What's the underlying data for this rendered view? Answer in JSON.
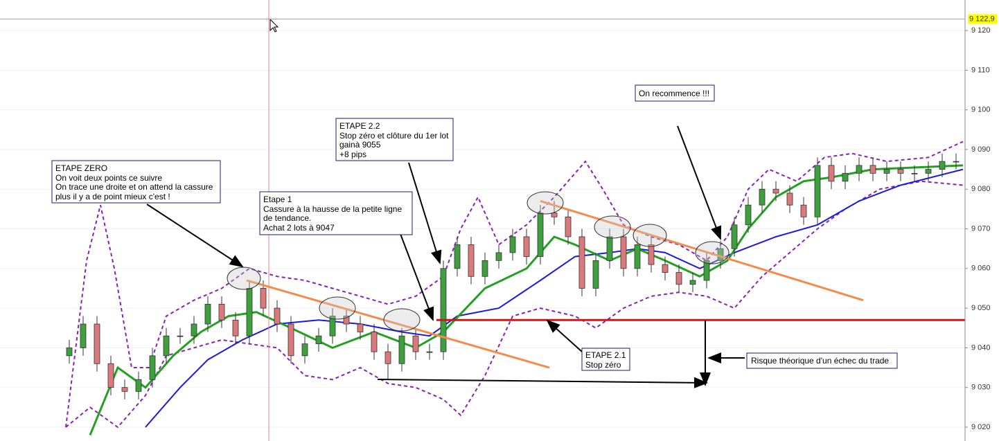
{
  "chart_data": {
    "type": "candlestick",
    "xlim": [
      -5,
      64.65
    ],
    "ylim": [
      9016.5,
      9127.7
    ],
    "yticks": [
      {
        "value": 9020,
        "label": "9 020"
      },
      {
        "value": 9030,
        "label": "9 030"
      },
      {
        "value": 9040,
        "label": "9 040"
      },
      {
        "value": 9050,
        "label": "9 050"
      },
      {
        "value": 9060,
        "label": "9 060"
      },
      {
        "value": 9070,
        "label": "9 070"
      },
      {
        "value": 9080,
        "label": "9 080"
      },
      {
        "value": 9090,
        "label": "9 090"
      },
      {
        "value": 9100,
        "label": "9 100"
      },
      {
        "value": 9110,
        "label": "9 110"
      },
      {
        "value": 9120,
        "label": "9 120"
      }
    ],
    "current_price": {
      "value": 9122.9,
      "label": "9 122,9"
    },
    "up_color": "#3f9f3f",
    "down_color": "#d9797b",
    "open": [
      9038,
      9040,
      9046,
      9036,
      9030,
      9029,
      9032,
      9038,
      9043,
      9043,
      9046,
      9051,
      9047,
      9043,
      9055,
      9050,
      9046,
      9038,
      9041,
      9043,
      9048,
      9046,
      9044,
      9039,
      9036,
      9043,
      9039,
      9039,
      9060,
      9066,
      9058,
      9062,
      9064,
      9068,
      9063,
      9074,
      9073,
      9068,
      9055,
      9062,
      9068,
      9060,
      9066,
      9061,
      9059,
      9056,
      9057,
      9062,
      9065,
      9071,
      9076,
      9080,
      9079,
      9076,
      9073,
      9086,
      9082,
      9084,
      9086,
      9084,
      9085,
      9084,
      9084,
      9085,
      9087
    ],
    "high": [
      9042,
      9048,
      9048,
      9038,
      9032,
      9034,
      9040,
      9045,
      9045,
      9048,
      9053,
      9053,
      9049,
      9057,
      9057,
      9052,
      9048,
      9043,
      9045,
      9050,
      9050,
      9048,
      9046,
      9041,
      9045,
      9045,
      9041,
      9062,
      9068,
      9068,
      9064,
      9066,
      9070,
      9070,
      9076,
      9077,
      9075,
      9070,
      9064,
      9070,
      9070,
      9068,
      9068,
      9063,
      9061,
      9059,
      9064,
      9067,
      9073,
      9078,
      9082,
      9082,
      9081,
      9078,
      9088,
      9088,
      9086,
      9088,
      9088,
      9087,
      9087,
      9086,
      9087,
      9089,
      9089
    ],
    "low": [
      9036,
      9038,
      9034,
      9028,
      9027,
      9027,
      9030,
      9036,
      9041,
      9041,
      9044,
      9045,
      9041,
      9041,
      9048,
      9044,
      9036,
      9036,
      9039,
      9041,
      9044,
      9042,
      9037,
      9032,
      9034,
      9037,
      9037,
      9037,
      9058,
      9056,
      9056,
      9060,
      9062,
      9061,
      9061,
      9071,
      9066,
      9053,
      9053,
      9060,
      9058,
      9058,
      9059,
      9057,
      9054,
      9054,
      9055,
      9060,
      9063,
      9069,
      9074,
      9077,
      9074,
      9071,
      9071,
      9080,
      9080,
      9082,
      9082,
      9082,
      9082,
      9082,
      9082,
      9083,
      9085
    ],
    "close": [
      9040,
      9046,
      9036,
      9030,
      9029,
      9032,
      9038,
      9043,
      9043,
      9046,
      9051,
      9047,
      9043,
      9055,
      9050,
      9046,
      9038,
      9041,
      9043,
      9048,
      9046,
      9044,
      9039,
      9036,
      9043,
      9039,
      9039,
      9060,
      9066,
      9058,
      9062,
      9064,
      9068,
      9063,
      9074,
      9073,
      9068,
      9055,
      9062,
      9068,
      9060,
      9066,
      9061,
      9059,
      9056,
      9057,
      9062,
      9065,
      9071,
      9076,
      9080,
      9079,
      9076,
      9073,
      9086,
      9082,
      9084,
      9086,
      9084,
      9085,
      9084,
      9084,
      9085,
      9087,
      9087
    ],
    "lines": [
      {
        "color": "#8a1fb8",
        "dashed": true,
        "width": 2,
        "x": [
          -0.25,
          1.25,
          2.25,
          3.25,
          4.5,
          5.75,
          7,
          9,
          11,
          13,
          15,
          17,
          19,
          21,
          23,
          25,
          27,
          28.25,
          29.5,
          31,
          33,
          35,
          37.25,
          38.5,
          40,
          42,
          44,
          46,
          47.5,
          49,
          50.5,
          52.5,
          54.5,
          56.5,
          59,
          62,
          64.5
        ],
        "values": [
          9020,
          9062,
          9076,
          9060,
          9035,
          9035,
          9048,
          9052,
          9055,
          9060,
          9058,
          9057,
          9055,
          9053,
          9051,
          9053,
          9058,
          9070,
          9078,
          9066,
          9071,
          9078,
          9087,
          9080,
          9071,
          9068,
          9066,
          9062,
          9068,
          9080,
          9085,
          9082,
          9088,
          9089,
          9087,
          9088,
          9092
        ]
      },
      {
        "color": "#8a1fb8",
        "dashed": true,
        "width": 2,
        "x": [
          -0.25,
          1.5,
          3.5,
          5.5,
          7,
          9,
          11,
          13,
          15,
          17,
          19,
          21,
          23,
          25,
          27,
          28.25,
          30,
          32,
          34,
          36.5,
          38,
          40,
          42,
          44,
          46,
          48,
          50,
          52,
          54,
          56,
          58.5,
          61.5,
          64.5
        ],
        "values": [
          9020,
          9025,
          9020,
          9028,
          9038,
          9040,
          9042,
          9041,
          9040,
          9033,
          9032,
          9035,
          9031,
          9030,
          9027,
          9023,
          9033,
          9048,
          9050,
          9048,
          9045,
          9050,
          9053,
          9054,
          9053,
          9050,
          9058,
          9064,
          9070,
          9075,
          9080,
          9082,
          9081
        ]
      },
      {
        "color": "#1a1adf",
        "dashed": false,
        "width": 2,
        "x": [
          5.5,
          8,
          10,
          12.5,
          15,
          18,
          21,
          24,
          26,
          28,
          31,
          34,
          36.5,
          39,
          41,
          43,
          45.5,
          48,
          51,
          54,
          57,
          60,
          64.5
        ],
        "values": [
          9020,
          9030,
          9037,
          9042,
          9046,
          9047,
          9046,
          9044,
          9043,
          9048,
          9050,
          9057,
          9063,
          9064,
          9065,
          9064,
          9060,
          9064,
          9068,
          9071,
          9077,
          9081,
          9085
        ]
      },
      {
        "color": "#22a022",
        "dashed": false,
        "width": 3,
        "x": [
          1.5,
          3.5,
          5.5,
          7.5,
          9.5,
          11.5,
          13.5,
          16,
          19,
          22,
          25,
          27,
          30,
          33,
          35,
          36.5,
          39,
          41,
          43,
          45.5,
          47.5,
          49,
          51,
          53,
          55,
          58,
          64.5
        ],
        "values": [
          9018,
          9035,
          9030,
          9038,
          9044,
          9048,
          9049,
          9045,
          9040,
          9044,
          9040,
          9044,
          9055,
          9060,
          9068,
          9066,
          9062,
          9065,
          9062,
          9058,
          9062,
          9070,
          9078,
          9082,
          9083,
          9085,
          9086
        ]
      }
    ],
    "trend_lines": [
      {
        "x": [
          12.8,
          34.65
        ],
        "values": [
          9057,
          9035
        ],
        "color": "#f58a4a"
      },
      {
        "x": [
          34,
          57.3
        ],
        "values": [
          9077,
          9052
        ],
        "color": "#f58a4a"
      }
    ],
    "stop_level": {
      "x": 26.5,
      "value": 9047,
      "color": "#e01010"
    },
    "annotations": [
      {
        "lines": [
          "ETAPE ZERO",
          "On voit deux points ce suivre",
          "On trace une droite et on attend la cassure",
          "plus il y a de point mieux c'est !"
        ]
      },
      {
        "lines": [
          "Etape 1",
          "Cassure à la hausse de la petite ligne",
          "de tendance.",
          "Achat 2 lots à 9047"
        ]
      },
      {
        "lines": [
          "ETAPE 2.2",
          "Stop zéro et clôture du 1er lot",
          "gainà 9055",
          "+8 pips"
        ]
      },
      {
        "lines": [
          "ETAPE 2.1",
          "Stop zéro"
        ]
      },
      {
        "lines": [
          "On recommence !!!"
        ]
      },
      {
        "lines": [
          "Risque théorique d'un échec du trade"
        ]
      }
    ]
  }
}
